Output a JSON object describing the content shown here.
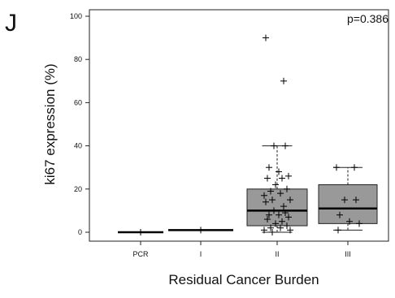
{
  "panel_label": "J",
  "chart_data": {
    "type": "box",
    "title": "",
    "annotation": "p=0.386",
    "xlabel": "Residual Cancer Burden",
    "ylabel": "ki67 expression (%)",
    "categories": [
      "PCR",
      "I",
      "II",
      "III"
    ],
    "ylim": [
      0,
      100
    ],
    "yticks": [
      0,
      20,
      40,
      60,
      80,
      100
    ],
    "grid": false,
    "box_color": "#999999",
    "boxes": [
      {
        "category": "PCR",
        "min": 0,
        "q1": 0,
        "median": 0,
        "q3": 0,
        "max": 0
      },
      {
        "category": "I",
        "min": 1,
        "q1": 1,
        "median": 1,
        "q3": 1,
        "max": 1
      },
      {
        "category": "II",
        "min": 0,
        "q1": 3,
        "median": 10,
        "q3": 20,
        "max": 40
      },
      {
        "category": "III",
        "min": 1,
        "q1": 4,
        "median": 11,
        "q3": 22,
        "max": 30
      }
    ],
    "points": [
      {
        "category": "PCR",
        "values": [
          0
        ]
      },
      {
        "category": "I",
        "values": [
          1
        ]
      },
      {
        "category": "II",
        "values": [
          90,
          70,
          40,
          40,
          30,
          28,
          26,
          25,
          25,
          22,
          20,
          19,
          18,
          17,
          15,
          15,
          14,
          12,
          10,
          9,
          8,
          8,
          7,
          6,
          5,
          4,
          3,
          2,
          2,
          1,
          1,
          0
        ]
      },
      {
        "category": "III",
        "values": [
          30,
          30,
          15,
          15,
          8,
          5,
          4,
          1
        ]
      }
    ]
  }
}
